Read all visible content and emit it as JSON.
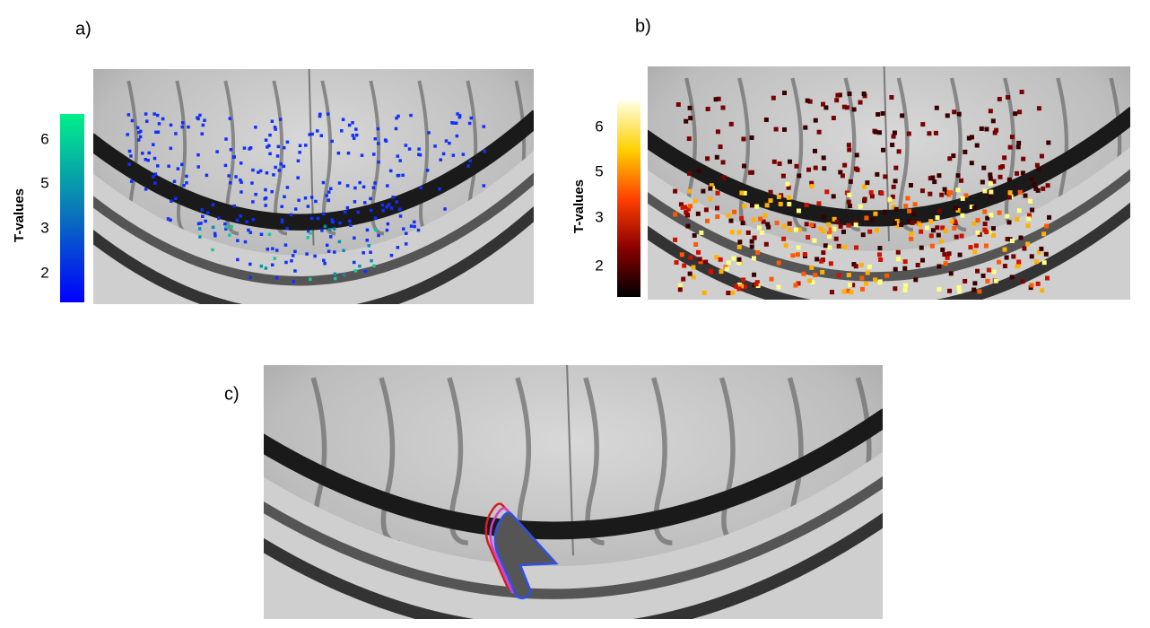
{
  "panels": [
    {
      "label": "a)",
      "colorbar": {
        "title": "T-values",
        "ticks": [
          6,
          5,
          3,
          2
        ]
      }
    },
    {
      "label": "b)",
      "colorbar": {
        "title": "T-values",
        "ticks": [
          6,
          5,
          3,
          2
        ]
      }
    },
    {
      "label": "c)"
    }
  ]
}
